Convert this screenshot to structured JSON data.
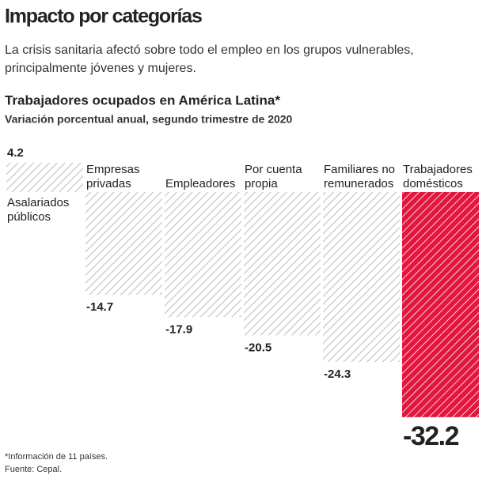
{
  "title": "Impacto por categorías",
  "subtitle_lines": [
    "La crisis sanitaria afectó sobre todo el empleo en los grupos vulnerables,",
    "principalmente jóvenes y mujeres."
  ],
  "chart_data": {
    "type": "bar",
    "title": "Trabajadores ocupados en América Latina*",
    "subtitle": "Variación porcentual anual, segundo trimestre de 2020",
    "categories": [
      "Asalariados públicos",
      "Empresas privadas",
      "Empleadores",
      "Por cuenta propia",
      "Familiares no remunerados",
      "Trabajadores domésticos"
    ],
    "values": [
      4.2,
      -14.7,
      -17.9,
      -20.5,
      -24.3,
      -32.2
    ],
    "colors": [
      "#cfcfcf",
      "#cfcfcf",
      "#cfcfcf",
      "#cfcfcf",
      "#cfcfcf",
      "#e3173e"
    ]
  },
  "footnotes": [
    "*Información de 11 países.",
    "Fuente: Cepal."
  ]
}
